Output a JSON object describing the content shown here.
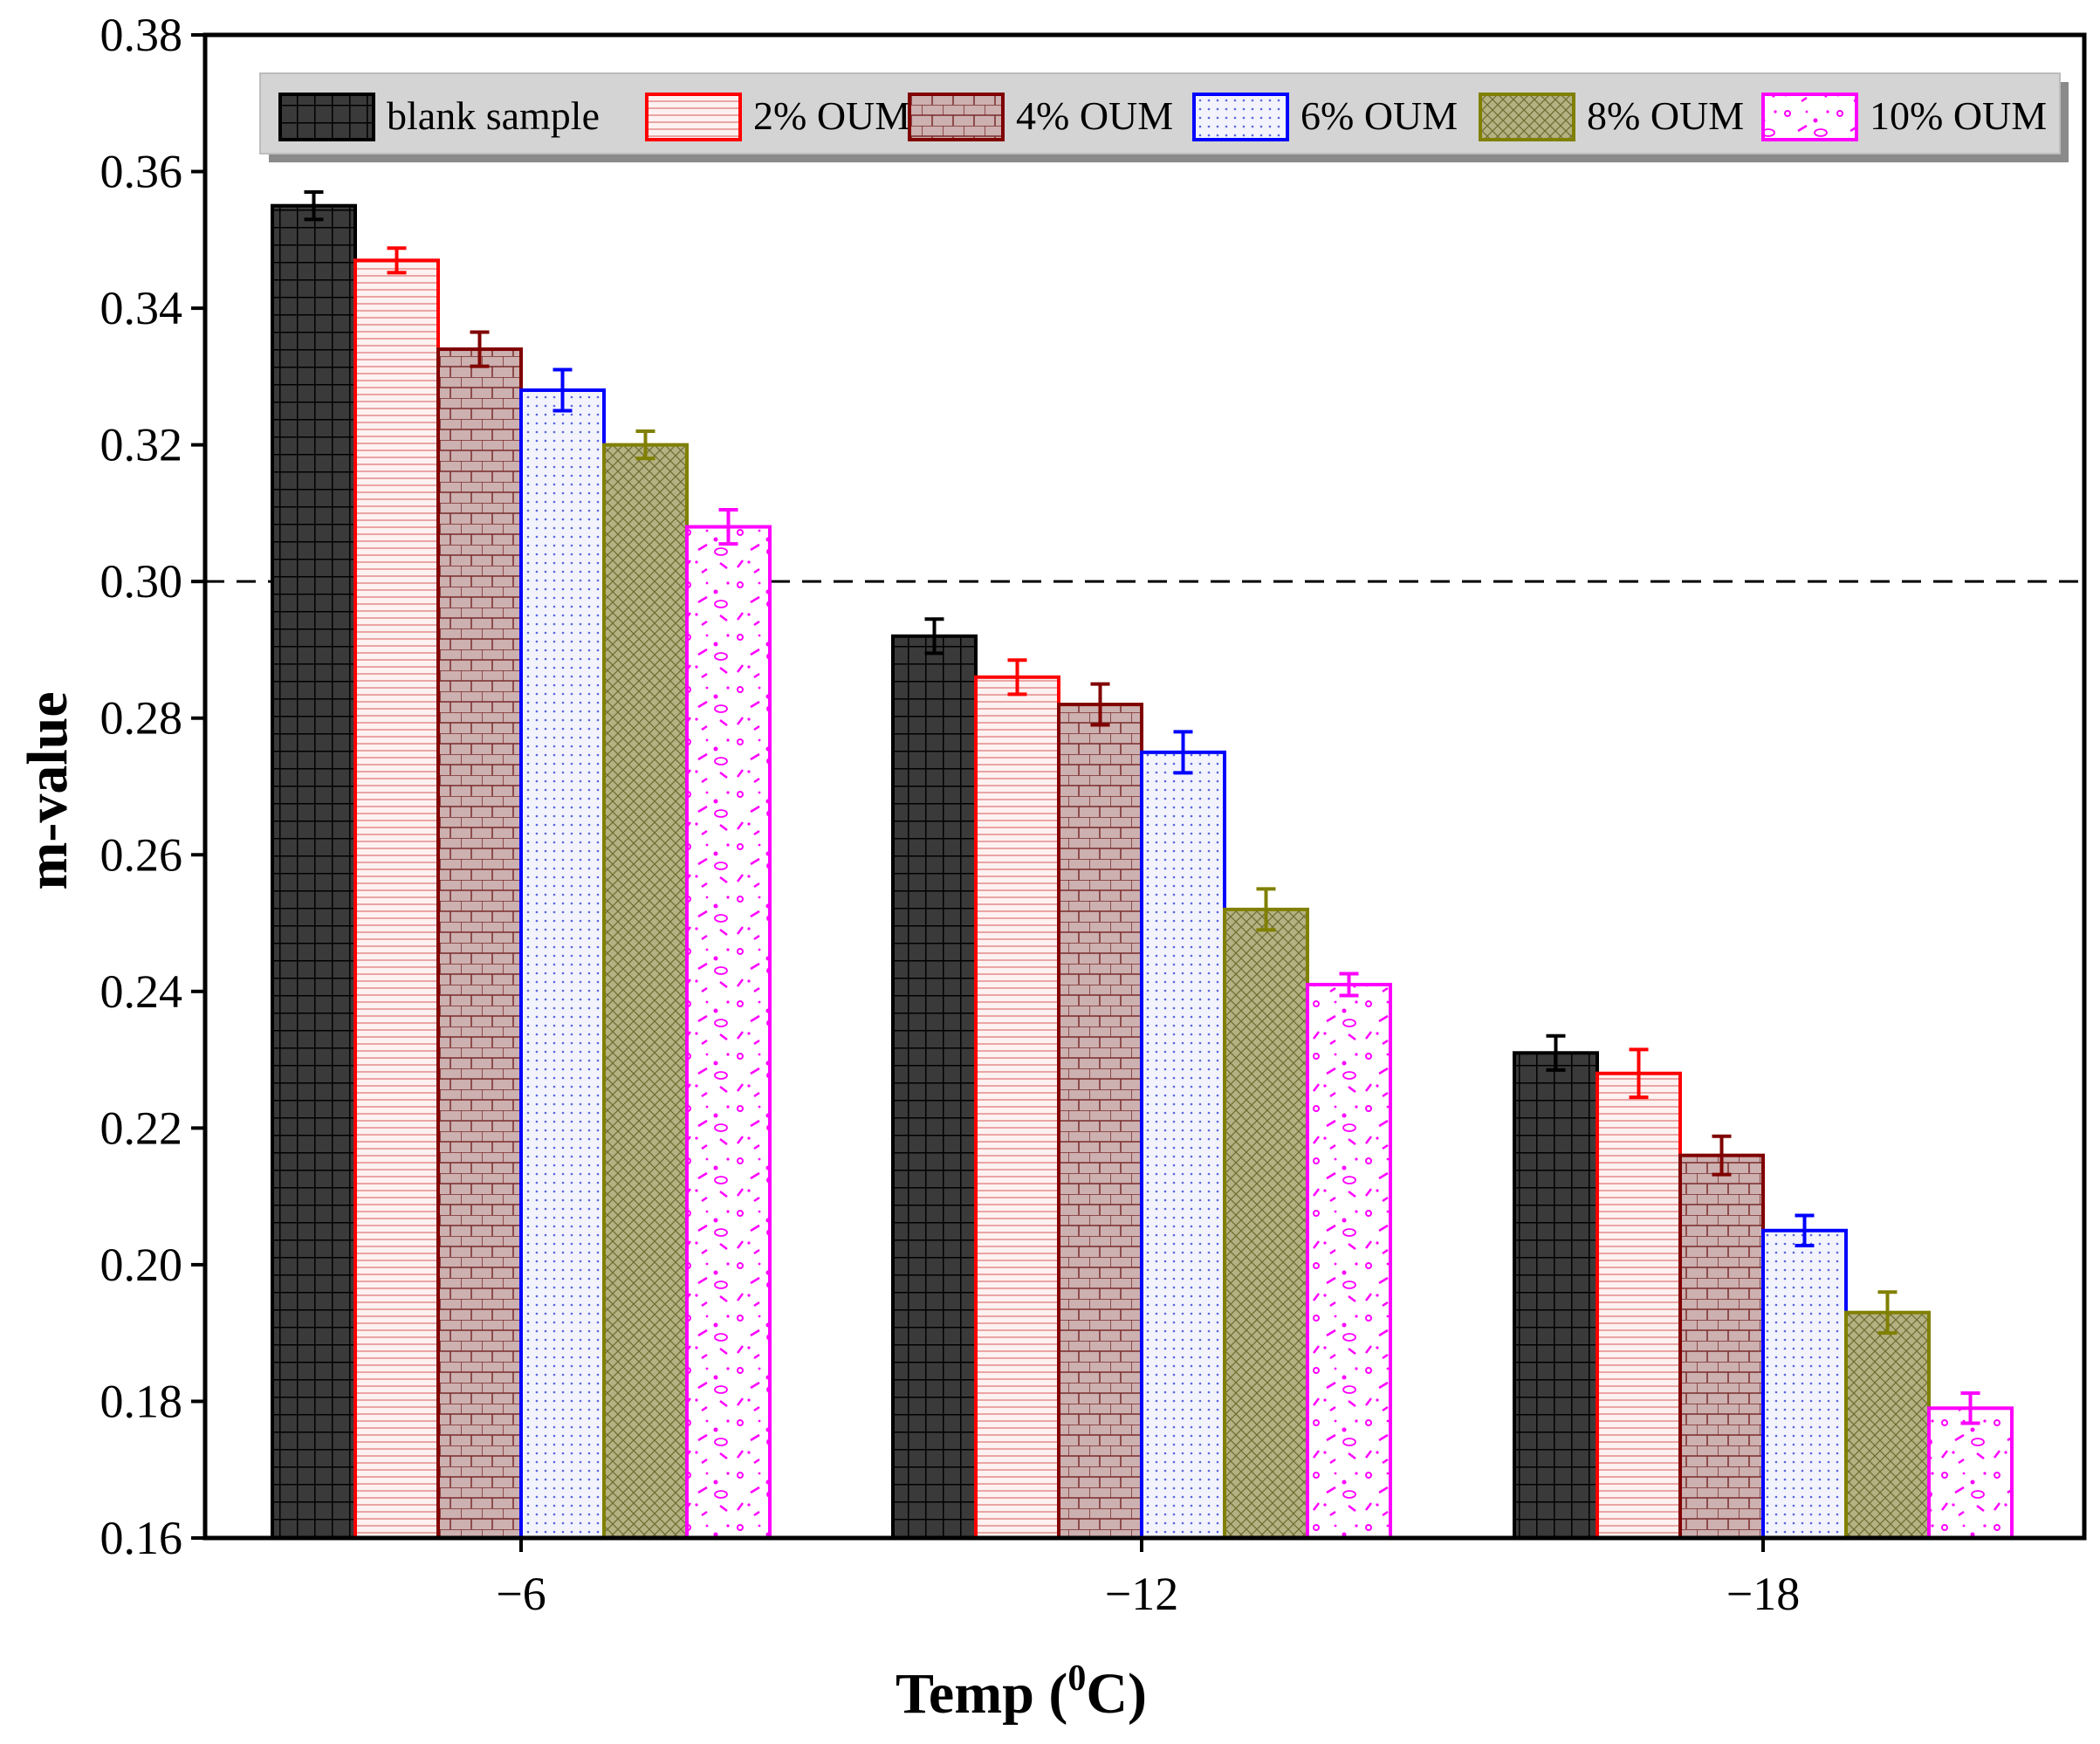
{
  "chart_data": {
    "type": "bar",
    "title": "",
    "xlabel": "Temp (",
    "xlabel_sup": "0",
    "xlabel_tail": "C)",
    "ylabel": "m-value",
    "ylim": [
      0.16,
      0.38
    ],
    "yticks": [
      "0.16",
      "0.18",
      "0.20",
      "0.22",
      "0.24",
      "0.26",
      "0.28",
      "0.30",
      "0.32",
      "0.34",
      "0.36",
      "0.38"
    ],
    "categories": [
      "−6",
      "−12",
      "−18"
    ],
    "reference_line": 0.3,
    "legend_position": "top",
    "series": [
      {
        "name": "blank sample",
        "color": "#000000",
        "fill": "#3a3a3a",
        "pattern": "grid",
        "values": [
          0.355,
          0.292,
          0.231
        ],
        "errors": [
          0.002,
          0.0025,
          0.0025
        ]
      },
      {
        "name": "2% OUM",
        "color": "#ff0000",
        "fill": "#fbe7e7",
        "pattern": "hlines",
        "values": [
          0.347,
          0.286,
          0.228
        ],
        "errors": [
          0.0018,
          0.0025,
          0.0035
        ]
      },
      {
        "name": "4% OUM",
        "color": "#800000",
        "fill": "#c9a7a7",
        "pattern": "brick",
        "values": [
          0.334,
          0.282,
          0.216
        ],
        "errors": [
          0.0025,
          0.003,
          0.0028
        ]
      },
      {
        "name": "6% OUM",
        "color": "#0000ff",
        "fill": "#eef0fb",
        "pattern": "dots",
        "values": [
          0.328,
          0.275,
          0.205
        ],
        "errors": [
          0.003,
          0.003,
          0.0022
        ]
      },
      {
        "name": "8% OUM",
        "color": "#808000",
        "fill": "#b9b78e",
        "pattern": "cross",
        "values": [
          0.32,
          0.252,
          0.193
        ],
        "errors": [
          0.002,
          0.003,
          0.003
        ]
      },
      {
        "name": "10% OUM",
        "color": "#ff00ff",
        "fill": "#ffffff",
        "pattern": "confetti",
        "values": [
          0.308,
          0.241,
          0.179
        ],
        "errors": [
          0.0025,
          0.0016,
          0.0022
        ]
      }
    ]
  }
}
